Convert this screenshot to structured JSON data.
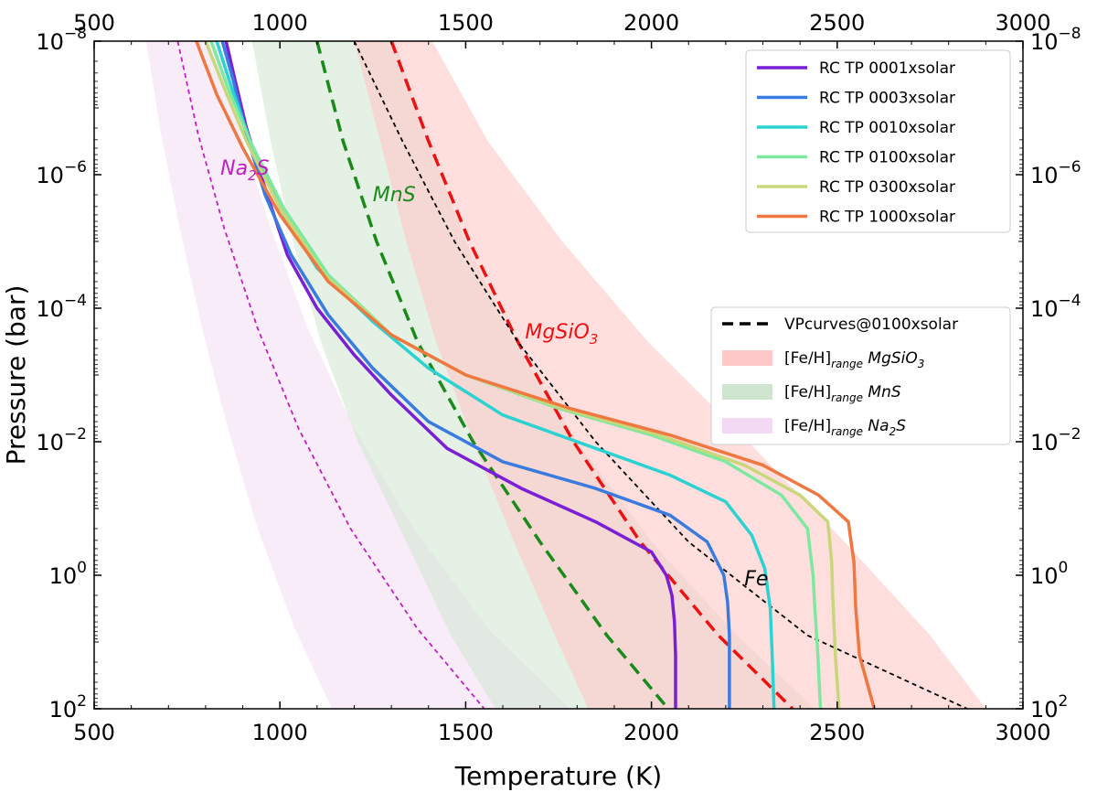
{
  "chart_data": {
    "type": "line",
    "xlabel": "Temperature (K)",
    "ylabel": "Pressure (bar)",
    "xlim": [
      500,
      3000
    ],
    "ylim_log10": [
      -8,
      2
    ],
    "y_scale": "log",
    "y_inverted": true,
    "grid": false,
    "x_ticks": [
      500,
      1000,
      1500,
      2000,
      2500,
      3000
    ],
    "x_tick_labels": [
      "500",
      "1000",
      "1500",
      "2000",
      "2500",
      "3000"
    ],
    "y_ticks_log10": [
      -8,
      -6,
      -4,
      -2,
      0,
      2
    ],
    "y_tick_labels": [
      {
        "base": "10",
        "exp": "−8"
      },
      {
        "base": "10",
        "exp": "−6"
      },
      {
        "base": "10",
        "exp": "−4"
      },
      {
        "base": "10",
        "exp": "−2"
      },
      {
        "base": "10",
        "exp": "0"
      },
      {
        "base": "10",
        "exp": "2"
      }
    ],
    "tp_series": [
      {
        "name": "RC TP 0001xsolar",
        "color": "#7b1fd6",
        "T": [
          855,
          880,
          910,
          960,
          1020,
          1100,
          1200,
          1300,
          1450,
          1650,
          1850,
          2000,
          2040,
          2055,
          2062,
          2065,
          2065
        ],
        "log10P": [
          -8,
          -7.4,
          -6.7,
          -5.8,
          -4.8,
          -4.0,
          -3.3,
          -2.7,
          -1.9,
          -1.3,
          -0.8,
          -0.35,
          0,
          0.3,
          0.7,
          1.2,
          2
        ]
      },
      {
        "name": "RC TP 0003xsolar",
        "color": "#3a7be0",
        "T": [
          845,
          875,
          910,
          960,
          1030,
          1130,
          1250,
          1400,
          1600,
          1850,
          2050,
          2150,
          2195,
          2205,
          2210,
          2210
        ],
        "log10P": [
          -8,
          -7.4,
          -6.6,
          -5.7,
          -4.8,
          -3.9,
          -3.1,
          -2.3,
          -1.7,
          -1.3,
          -0.9,
          -0.5,
          0,
          0.4,
          0.9,
          2
        ]
      },
      {
        "name": "RC TP 0010xsolar",
        "color": "#2ad2d2",
        "T": [
          830,
          870,
          920,
          1000,
          1100,
          1250,
          1400,
          1600,
          1850,
          2050,
          2200,
          2270,
          2305,
          2320,
          2325,
          2330
        ],
        "log10P": [
          -8,
          -7.3,
          -6.5,
          -5.5,
          -4.6,
          -3.8,
          -3.1,
          -2.4,
          -1.9,
          -1.5,
          -1.1,
          -0.6,
          -0.1,
          0.5,
          1.2,
          2
        ]
      },
      {
        "name": "RC TP 0100xsolar",
        "color": "#7de8a0",
        "T": [
          815,
          860,
          920,
          1010,
          1130,
          1300,
          1500,
          1750,
          2000,
          2200,
          2350,
          2420,
          2435,
          2440,
          2448,
          2455
        ],
        "log10P": [
          -8,
          -7.3,
          -6.5,
          -5.5,
          -4.5,
          -3.6,
          -3.0,
          -2.5,
          -2.1,
          -1.7,
          -1.2,
          -0.7,
          0,
          0.5,
          1.2,
          2
        ]
      },
      {
        "name": "RC TP 0300xsolar",
        "color": "#c8d77a",
        "T": [
          800,
          850,
          910,
          1000,
          1120,
          1300,
          1500,
          1760,
          2020,
          2250,
          2400,
          2475,
          2485,
          2488,
          2495,
          2505
        ],
        "log10P": [
          -8,
          -7.3,
          -6.5,
          -5.5,
          -4.5,
          -3.6,
          -3.0,
          -2.5,
          -2.1,
          -1.65,
          -1.2,
          -0.8,
          -0.2,
          0.3,
          1.2,
          2
        ]
      },
      {
        "name": "RC TP 1000xsolar",
        "color": "#f07840",
        "T": [
          775,
          830,
          900,
          1000,
          1130,
          1300,
          1500,
          1780,
          2050,
          2300,
          2450,
          2530,
          2545,
          2550,
          2560,
          2600
        ],
        "log10P": [
          -8,
          -7.2,
          -6.4,
          -5.4,
          -4.4,
          -3.6,
          -3.0,
          -2.5,
          -2.1,
          -1.65,
          -1.2,
          -0.8,
          -0.2,
          0.5,
          1.2,
          2
        ]
      }
    ],
    "vp_curves": [
      {
        "name": "Na2S",
        "color": "#c020c0",
        "width": 1.8,
        "T": [
          725,
          780,
          850,
          940,
          1050,
          1190,
          1370,
          1550
        ],
        "log10P": [
          -8,
          -6.6,
          -5.2,
          -3.7,
          -2.2,
          -0.7,
          0.8,
          2
        ]
      },
      {
        "name": "MnS",
        "color": "#1a8a1a",
        "width": 3.5,
        "T": [
          1100,
          1170,
          1260,
          1370,
          1520,
          1700,
          1880,
          2045
        ],
        "log10P": [
          -8,
          -6.5,
          -5.0,
          -3.5,
          -2.0,
          -0.5,
          0.9,
          2
        ]
      },
      {
        "name": "MgSiO3",
        "color": "#ee1111",
        "width": 3.5,
        "T": [
          1300,
          1400,
          1510,
          1640,
          1790,
          1970,
          2180,
          2380
        ],
        "log10P": [
          -8,
          -6.5,
          -5.0,
          -3.5,
          -2.0,
          -0.5,
          0.9,
          2
        ]
      },
      {
        "name": "Fe",
        "color": "#000000",
        "width": 1.8,
        "T": [
          1200,
          1330,
          1470,
          1640,
          1850,
          2100,
          2420,
          2850
        ],
        "log10P": [
          -8,
          -6.5,
          -5.0,
          -3.5,
          -2.0,
          -0.5,
          0.9,
          2
        ]
      }
    ],
    "vp_bands": [
      {
        "name": "Na2S",
        "color": "#f3d9f3",
        "opacity": 0.5,
        "T_low": [
          640,
          680,
          730,
          790,
          860,
          940,
          1040,
          1140
        ],
        "T_high": [
          835,
          895,
          975,
          1075,
          1200,
          1360,
          1560,
          1780
        ],
        "log10P": [
          -8,
          -6.6,
          -5.2,
          -3.7,
          -2.2,
          -0.7,
          0.8,
          2
        ]
      },
      {
        "name": "MnS",
        "color": "#cfe5cf",
        "opacity": 0.55,
        "T_low": [
          925,
          975,
          1035,
          1110,
          1210,
          1340,
          1460,
          1580
        ],
        "T_high": [
          1310,
          1400,
          1500,
          1630,
          1800,
          2000,
          2230,
          2440
        ],
        "log10P": [
          -8,
          -6.5,
          -5.0,
          -3.5,
          -2.0,
          -0.5,
          0.9,
          2
        ]
      },
      {
        "name": "MgSiO3",
        "color": "#ffc8c8",
        "opacity": 0.6,
        "T_low": [
          1200,
          1270,
          1340,
          1420,
          1520,
          1630,
          1740,
          1830
        ],
        "T_high": [
          1410,
          1560,
          1760,
          1990,
          2260,
          2520,
          2750,
          2900
        ],
        "log10P": [
          -8,
          -6.5,
          -5.0,
          -3.5,
          -2.0,
          -0.5,
          0.9,
          2
        ]
      }
    ],
    "legend1": {
      "position": "top-right",
      "entries": [
        "RC TP 0001xsolar",
        "RC TP 0003xsolar",
        "RC TP 0010xsolar",
        "RC TP 0100xsolar",
        "RC TP 0300xsolar",
        "RC TP 1000xsolar"
      ]
    },
    "legend2": {
      "position": "center-right",
      "entries": [
        {
          "kind": "line",
          "color": "#000000",
          "label": "VPcurves@0100xsolar"
        },
        {
          "kind": "patch",
          "color": "#ffc8c8",
          "label_main": "[Fe/H]",
          "label_sub": "range",
          "species": "MgSiO",
          "species_sub": "3"
        },
        {
          "kind": "patch",
          "color": "#cfe5cf",
          "label_main": "[Fe/H]",
          "label_sub": "range",
          "species": "MnS",
          "species_sub": ""
        },
        {
          "kind": "patch",
          "color": "#f3d9f3",
          "label_main": "[Fe/H]",
          "label_sub": "range",
          "species": "Na",
          "species_sub": "2",
          "species_tail": "S"
        }
      ]
    },
    "annotations": [
      {
        "text": "Na",
        "sub": "2",
        "tail": "S",
        "color": "#c020c0",
        "T": 840,
        "log10P": -6.0
      },
      {
        "text": "MnS",
        "sub": "",
        "tail": "",
        "color": "#1a8a1a",
        "T": 1250,
        "log10P": -5.6
      },
      {
        "text": "MgSiO",
        "sub": "3",
        "tail": "",
        "color": "#ee1111",
        "T": 1660,
        "log10P": -3.55
      },
      {
        "text": "Fe",
        "sub": "",
        "tail": "",
        "color": "#000000",
        "T": 2250,
        "log10P": 0.15
      }
    ]
  }
}
